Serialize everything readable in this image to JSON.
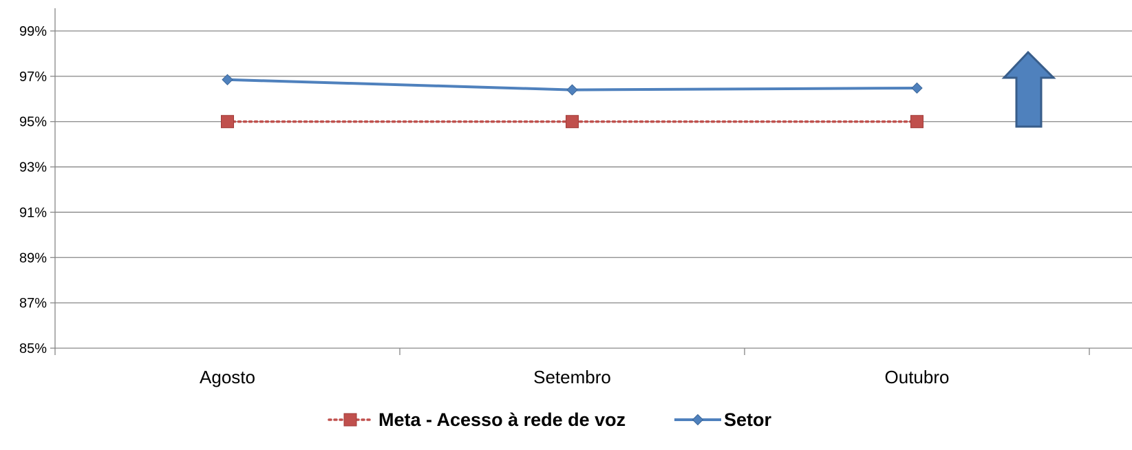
{
  "chart_data": {
    "type": "line",
    "title": "",
    "xlabel": "",
    "ylabel": "",
    "categories": [
      "Agosto",
      "Setembro",
      "Outubro"
    ],
    "ylim": [
      0.85,
      0.99
    ],
    "yticks": [
      0.85,
      0.87,
      0.89,
      0.91,
      0.93,
      0.95,
      0.97,
      0.99
    ],
    "ytick_labels": [
      "85%",
      "87%",
      "89%",
      "91%",
      "93%",
      "95%",
      "97%",
      "99%"
    ],
    "grid": true,
    "legend_position": "bottom",
    "series": [
      {
        "name": "Meta - Acesso à rede de voz",
        "values": [
          0.95,
          0.95,
          0.95
        ],
        "color": "#C0504D",
        "line_style": "dotted",
        "marker": "square"
      },
      {
        "name": "Setor",
        "values": [
          0.9685,
          0.964,
          0.9648
        ],
        "color": "#4F81BD",
        "line_style": "solid",
        "marker": "diamond"
      }
    ],
    "annotations": [
      {
        "type": "arrow",
        "direction": "up",
        "meaning": "higher is better",
        "color": "#4F81BD"
      }
    ]
  }
}
